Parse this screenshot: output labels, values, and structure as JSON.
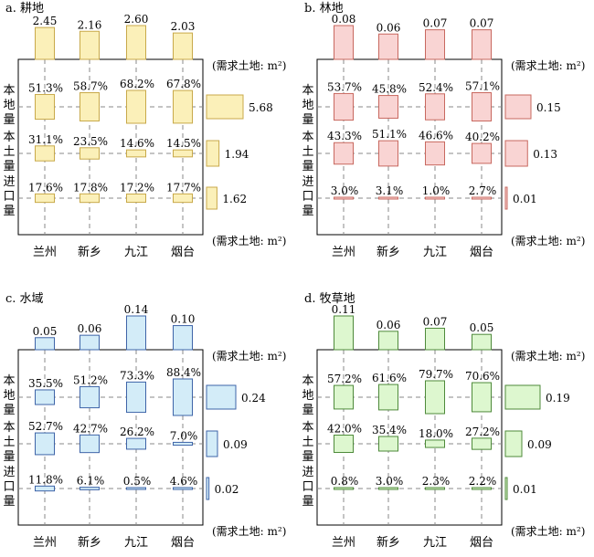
{
  "figure": {
    "row_labels": [
      "本地量",
      "本土量",
      "进口量"
    ],
    "unit_label": "(需求土地: m²)"
  },
  "chart_data": [
    {
      "type": "bar",
      "panel": "a. 耕地",
      "title": "a. 耕地",
      "categories": [
        "兰州",
        "新乡",
        "九江",
        "烟台"
      ],
      "colors": {
        "fill": "#FBF0B9",
        "stroke": "#C8A94A"
      },
      "total_demand": {
        "unit": "需求土地: m²",
        "values": [
          2.45,
          2.16,
          2.6,
          2.03
        ]
      },
      "source_share_percent": {
        "rows": [
          "本地量",
          "本土量",
          "进口量"
        ],
        "values": [
          [
            51.3,
            58.7,
            68.2,
            67.8
          ],
          [
            31.1,
            23.5,
            14.6,
            14.5
          ],
          [
            17.6,
            17.8,
            17.2,
            17.7
          ]
        ]
      },
      "row_totals": {
        "unit": "需求土地: m²",
        "values": [
          5.68,
          1.94,
          1.62
        ]
      }
    },
    {
      "type": "bar",
      "panel": "b. 林地",
      "title": "b. 林地",
      "categories": [
        "兰州",
        "新乡",
        "九江",
        "烟台"
      ],
      "colors": {
        "fill": "#F9D4D3",
        "stroke": "#C8685F"
      },
      "total_demand": {
        "unit": "需求土地: m²",
        "values": [
          0.08,
          0.06,
          0.07,
          0.07
        ]
      },
      "source_share_percent": {
        "rows": [
          "本地量",
          "本土量",
          "进口量"
        ],
        "values": [
          [
            53.7,
            45.8,
            52.4,
            57.1
          ],
          [
            43.3,
            51.1,
            46.6,
            40.2
          ],
          [
            3.0,
            3.1,
            1.0,
            2.7
          ]
        ]
      },
      "row_totals": {
        "unit": "需求土地: m²",
        "values": [
          0.15,
          0.13,
          0.01
        ]
      }
    },
    {
      "type": "bar",
      "panel": "c. 水域",
      "title": "c. 水域",
      "categories": [
        "兰州",
        "新乡",
        "九江",
        "烟台"
      ],
      "colors": {
        "fill": "#D3ECF8",
        "stroke": "#3E64A8"
      },
      "total_demand": {
        "unit": "需求土地: m²",
        "values": [
          0.05,
          0.06,
          0.14,
          0.1
        ]
      },
      "source_share_percent": {
        "rows": [
          "本地量",
          "本土量",
          "进口量"
        ],
        "values": [
          [
            35.5,
            51.2,
            73.3,
            88.4
          ],
          [
            52.7,
            42.7,
            26.2,
            7.0
          ],
          [
            11.8,
            6.1,
            0.5,
            4.6
          ]
        ]
      },
      "row_totals": {
        "unit": "需求土地: m²",
        "values": [
          0.24,
          0.09,
          0.02
        ]
      }
    },
    {
      "type": "bar",
      "panel": "d. 牧草地",
      "title": "d. 牧草地",
      "categories": [
        "兰州",
        "新乡",
        "九江",
        "烟台"
      ],
      "colors": {
        "fill": "#DDF7CF",
        "stroke": "#4E8A3A"
      },
      "total_demand": {
        "unit": "需求土地: m²",
        "values": [
          0.11,
          0.06,
          0.07,
          0.05
        ]
      },
      "source_share_percent": {
        "rows": [
          "本地量",
          "本土量",
          "进口量"
        ],
        "values": [
          [
            57.2,
            61.6,
            79.7,
            70.6
          ],
          [
            42.0,
            35.4,
            18.0,
            27.2
          ],
          [
            0.8,
            3.0,
            2.3,
            2.2
          ]
        ]
      },
      "row_totals": {
        "unit": "需求土地: m²",
        "values": [
          0.19,
          0.09,
          0.01
        ]
      }
    }
  ]
}
